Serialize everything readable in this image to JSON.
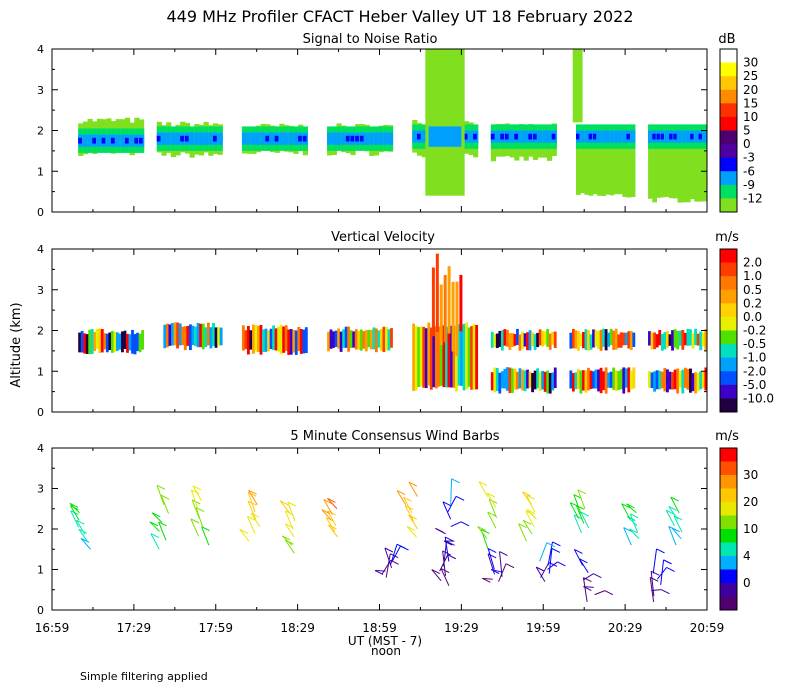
{
  "figure": {
    "title": "449 MHz Profiler CFACT Heber Valley UT 18 February 2022",
    "ylabel": "Altitude (km)",
    "xlabel": "UT  (MST - 7)",
    "noon_label": "noon",
    "footnote": "Simple filtering applied"
  },
  "chart_data": [
    {
      "type": "heatmap",
      "title": "Signal to Noise Ratio",
      "units": "dB",
      "ylim": [
        0,
        4
      ],
      "yticks": [
        "0",
        "1",
        "2",
        "3",
        "4"
      ],
      "colorbar_labels": [
        "30",
        "25",
        "20",
        "15",
        "10",
        "5",
        "0",
        "-3",
        "-6",
        "-9",
        "-12"
      ],
      "colorbar_colors": [
        "#ffffff",
        "#ffff00",
        "#ffc800",
        "#ff8c00",
        "#ff3000",
        "#ff0000",
        "#4a0070",
        "#5000a0",
        "#0000ff",
        "#00a0ff",
        "#00e060",
        "#80e020"
      ],
      "blocks": [
        {
          "x0": 0.04,
          "x1": 0.14,
          "y0": 1.45,
          "y1": 2.25,
          "core": 1.75
        },
        {
          "x0": 0.16,
          "x1": 0.26,
          "y0": 1.4,
          "y1": 2.15,
          "core": 1.8
        },
        {
          "x0": 0.29,
          "x1": 0.39,
          "y0": 1.45,
          "y1": 2.1,
          "core": 1.8
        },
        {
          "x0": 0.42,
          "x1": 0.52,
          "y0": 1.45,
          "y1": 2.1,
          "core": 1.8
        },
        {
          "x0": 0.55,
          "x1": 0.65,
          "y0": 1.4,
          "y1": 2.2,
          "core": 1.85
        },
        {
          "x0": 0.67,
          "x1": 0.77,
          "y0": 1.3,
          "y1": 2.1,
          "core": 1.85
        },
        {
          "x0": 0.8,
          "x1": 0.89,
          "y0": 0.4,
          "y1": 2.05,
          "core": 1.85
        },
        {
          "x0": 0.91,
          "x1": 1.0,
          "y0": 0.3,
          "y1": 2.05,
          "core": 1.85
        }
      ]
    },
    {
      "type": "heatmap",
      "title": "Vertical Velocity",
      "units": "m/s",
      "ylim": [
        0,
        4
      ],
      "yticks": [
        "0",
        "1",
        "2",
        "3",
        "4"
      ],
      "colorbar_labels": [
        "2.0",
        "1.0",
        "0.5",
        "0.2",
        "0.0",
        "-0.2",
        "-0.5",
        "-1.0",
        "-2.0",
        "-5.0",
        "-10.0"
      ],
      "colorbar_colors": [
        "#ff0000",
        "#ff3c00",
        "#ff7800",
        "#ffa000",
        "#ffd200",
        "#e6f000",
        "#50e000",
        "#00e0c0",
        "#00a0ff",
        "#0050ff",
        "#3c00c8",
        "#200040"
      ],
      "blocks": [
        {
          "x0": 0.04,
          "x1": 0.14,
          "y0": 1.4,
          "y1": 2.05
        },
        {
          "x0": 0.17,
          "x1": 0.26,
          "y0": 1.5,
          "y1": 2.2
        },
        {
          "x0": 0.29,
          "x1": 0.39,
          "y0": 1.4,
          "y1": 2.15
        },
        {
          "x0": 0.42,
          "x1": 0.52,
          "y0": 1.45,
          "y1": 2.1
        },
        {
          "x0": 0.55,
          "x1": 0.65,
          "y0": 0.5,
          "y1": 2.2
        },
        {
          "x0": 0.67,
          "x1": 0.77,
          "y0": 1.5,
          "y1": 2.05
        },
        {
          "x0": 0.67,
          "x1": 0.77,
          "y0": 0.45,
          "y1": 1.1
        },
        {
          "x0": 0.79,
          "x1": 0.89,
          "y0": 1.5,
          "y1": 2.05
        },
        {
          "x0": 0.79,
          "x1": 0.89,
          "y0": 0.45,
          "y1": 1.1
        },
        {
          "x0": 0.91,
          "x1": 1.0,
          "y0": 1.5,
          "y1": 2.05
        },
        {
          "x0": 0.91,
          "x1": 1.0,
          "y0": 0.45,
          "y1": 1.1
        }
      ]
    },
    {
      "type": "scatter",
      "title": "5 Minute Consensus Wind Barbs",
      "units": "m/s",
      "ylim": [
        0,
        4
      ],
      "yticks": [
        "0",
        "1",
        "2",
        "3",
        "4"
      ],
      "colorbar_labels": [
        "30",
        "20",
        "10",
        "4",
        "0"
      ],
      "colorbar_colors": [
        "#ff0000",
        "#ff5000",
        "#ff9600",
        "#ffc800",
        "#e8e800",
        "#80e000",
        "#00e000",
        "#00e8b0",
        "#00b0ff",
        "#0000ff",
        "#4000a0",
        "#500070"
      ],
      "groups": [
        {
          "x": 0.05,
          "y0": 1.5,
          "y1": 2.4,
          "speed": 12
        },
        {
          "x": 0.17,
          "y0": 1.5,
          "y1": 2.6,
          "speed": 15
        },
        {
          "x": 0.23,
          "y0": 1.6,
          "y1": 2.7,
          "speed": 18
        },
        {
          "x": 0.31,
          "y0": 1.7,
          "y1": 2.6,
          "speed": 22
        },
        {
          "x": 0.37,
          "y0": 1.4,
          "y1": 2.4,
          "speed": 20
        },
        {
          "x": 0.43,
          "y0": 1.8,
          "y1": 2.5,
          "speed": 25
        },
        {
          "x": 0.55,
          "y0": 1.8,
          "y1": 2.8,
          "speed": 24
        },
        {
          "x": 0.61,
          "y0": 1.7,
          "y1": 2.6,
          "speed": 5
        },
        {
          "x": 0.67,
          "y0": 1.5,
          "y1": 2.8,
          "speed": 18
        },
        {
          "x": 0.73,
          "y0": 1.7,
          "y1": 2.6,
          "speed": 20
        },
        {
          "x": 0.81,
          "y0": 1.9,
          "y1": 2.5,
          "speed": 14
        },
        {
          "x": 0.89,
          "y0": 1.6,
          "y1": 2.4,
          "speed": 12
        },
        {
          "x": 0.96,
          "y0": 1.6,
          "y1": 2.4,
          "speed": 11
        },
        {
          "x": 0.51,
          "y0": 0.8,
          "y1": 1.2,
          "speed": 3
        },
        {
          "x": 0.6,
          "y0": 0.6,
          "y1": 1.2,
          "speed": 2
        },
        {
          "x": 0.68,
          "y0": 0.7,
          "y1": 1.0,
          "speed": 3
        },
        {
          "x": 0.75,
          "y0": 0.7,
          "y1": 1.2,
          "speed": 5
        },
        {
          "x": 0.82,
          "y0": 0.2,
          "y1": 1.1,
          "speed": 3
        },
        {
          "x": 0.92,
          "y0": 0.2,
          "y1": 0.9,
          "speed": 4
        }
      ]
    }
  ],
  "xticks": [
    "16:59",
    "17:29",
    "17:59",
    "18:29",
    "18:59",
    "19:29",
    "19:59",
    "20:29",
    "20:59"
  ]
}
